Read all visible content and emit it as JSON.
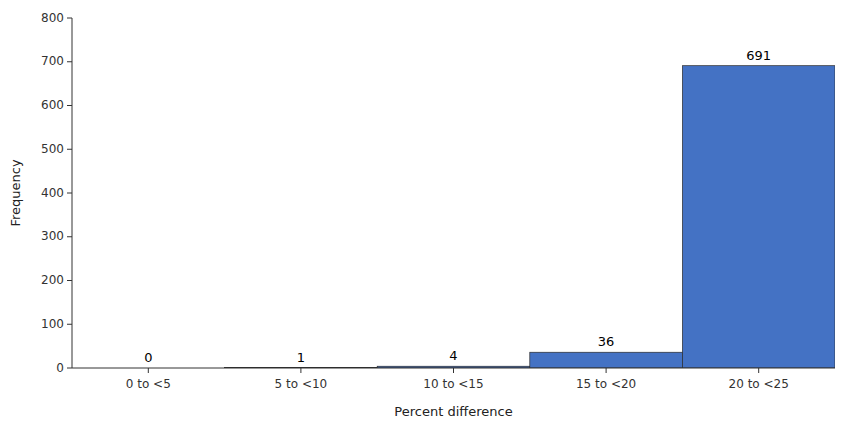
{
  "chart_data": {
    "type": "bar",
    "categories": [
      "0 to <5",
      "5 to <10",
      "10 to <15",
      "15 to <20",
      "20 to <25"
    ],
    "values": [
      0,
      1,
      4,
      36,
      691
    ],
    "color": "#4472C4",
    "xlabel": "Percent difference",
    "ylabel": "Frequency",
    "ylim": [
      0,
      800
    ],
    "yticks": [
      0,
      100,
      200,
      300,
      400,
      500,
      600,
      700,
      800
    ],
    "grid": false,
    "data_labels": true
  }
}
